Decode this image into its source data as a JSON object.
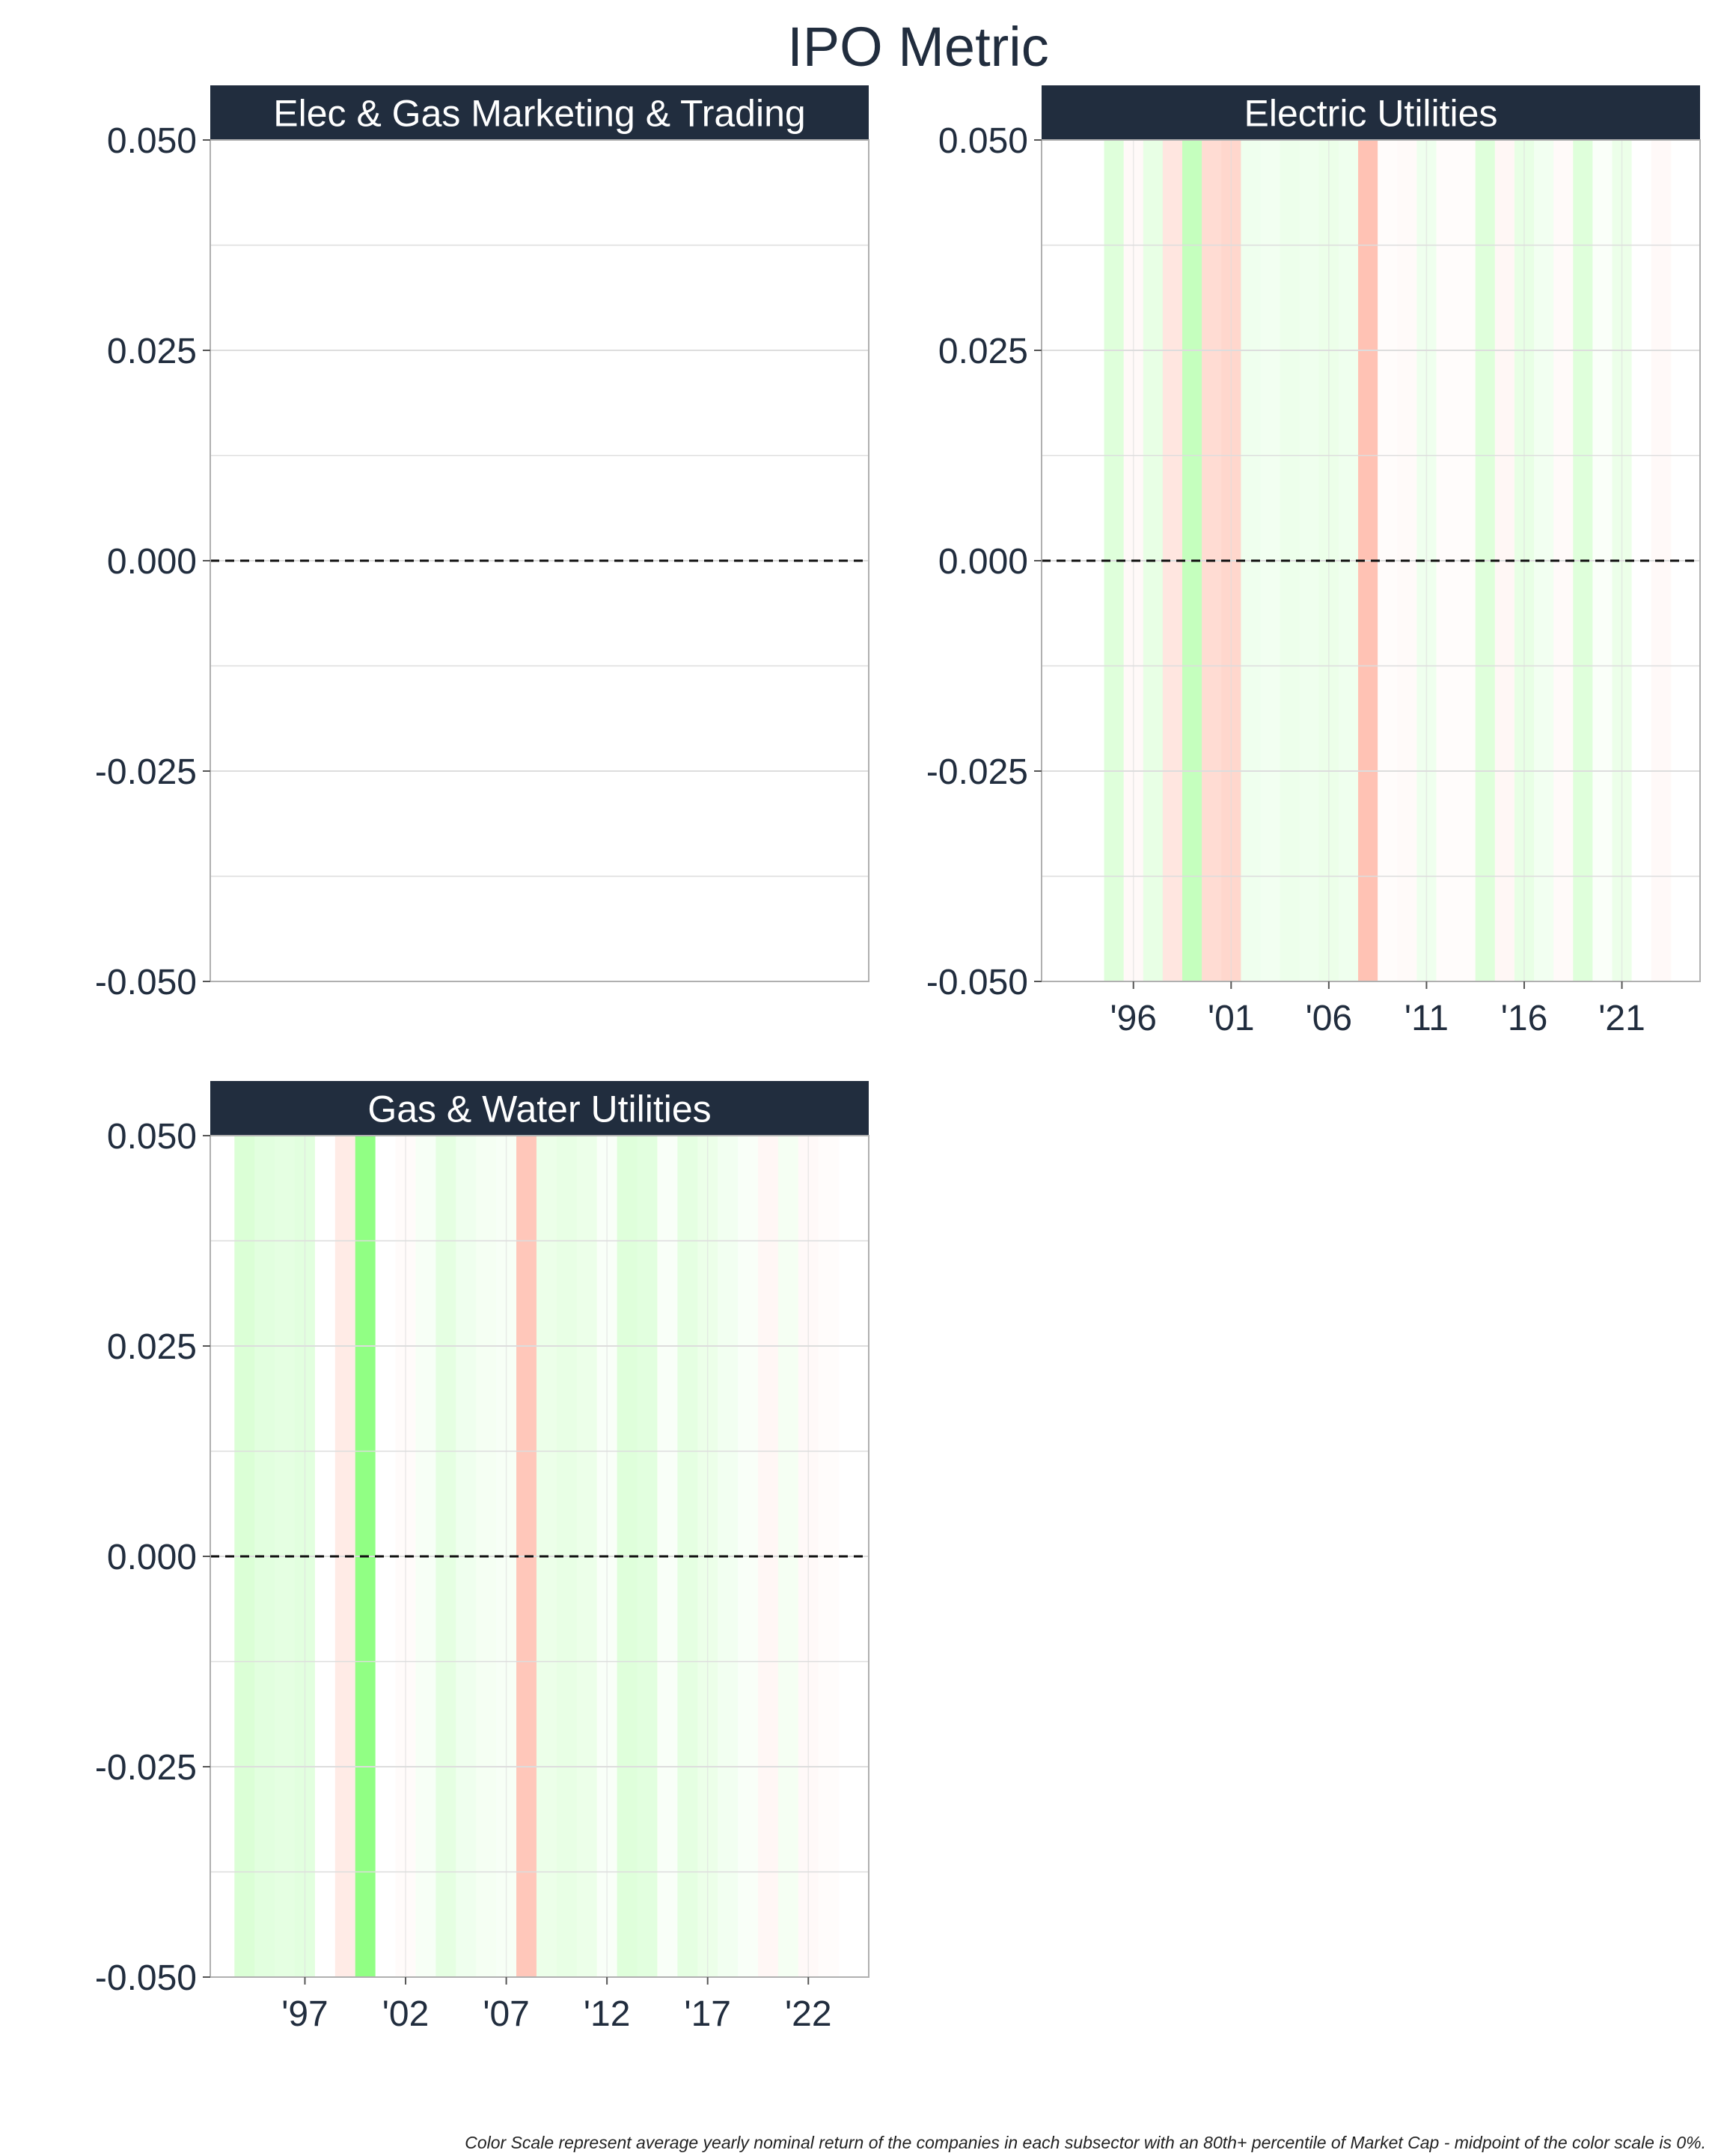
{
  "title": "IPO Metric",
  "caption": "Color Scale represent average yearly nominal return of the companies in each subsector with an 80th+ percentile of Market Cap - midpoint of the color scale is 0%.",
  "colors": {
    "header_bg": "#212d3e",
    "header_text": "#ffffff",
    "title_text": "#212d3e",
    "grid": "#dddddd",
    "zero_line": "#111111",
    "positive": "#7dff6e",
    "negative": "#ff9a82"
  },
  "chart_data": [
    {
      "type": "heatmap",
      "panel": "Elec & Gas Marketing & Trading",
      "ylim": [
        -0.05,
        0.05
      ],
      "yticks": [
        "0.050",
        "0.025",
        "0.000",
        "-0.025",
        "-0.050"
      ],
      "ytick_values": [
        0.05,
        0.025,
        0,
        -0.025,
        -0.05
      ],
      "xlim": [
        1991.3,
        2025.0
      ],
      "xticks": [],
      "xtick_values": [],
      "zero_line": 0,
      "years": [],
      "returns": []
    },
    {
      "type": "heatmap",
      "panel": "Electric Utilities",
      "ylim": [
        -0.05,
        0.05
      ],
      "yticks": [
        "0.050",
        "0.025",
        "0.000",
        "-0.025",
        "-0.050"
      ],
      "ytick_values": [
        0.05,
        0.025,
        0,
        -0.025,
        -0.05
      ],
      "xlim": [
        1991.3,
        2025.0
      ],
      "xticks": [
        "'96",
        "'01",
        "'06",
        "'11",
        "'16",
        "'21"
      ],
      "xtick_values": [
        1996,
        2001,
        2006,
        2011,
        2016,
        2021
      ],
      "zero_line": 0,
      "years": [
        1995,
        1996,
        1997,
        1998,
        1999,
        2000,
        2001,
        2002,
        2003,
        2004,
        2005,
        2006,
        2007,
        2008,
        2009,
        2010,
        2011,
        2012,
        2013,
        2014,
        2015,
        2016,
        2017,
        2018,
        2019,
        2020,
        2021,
        2022,
        2023
      ],
      "returns": [
        0.25,
        -0.06,
        0.18,
        -0.25,
        0.45,
        -0.35,
        -0.4,
        0.12,
        0.1,
        0.14,
        0.12,
        0.15,
        0.12,
        -0.6,
        -0.03,
        -0.05,
        0.12,
        -0.03,
        -0.03,
        0.25,
        -0.08,
        0.18,
        0.1,
        -0.05,
        0.25,
        0.04,
        0.15,
        0.0,
        -0.06
      ]
    },
    {
      "type": "heatmap",
      "panel": "Gas & Water Utilities",
      "ylim": [
        -0.05,
        0.05
      ],
      "yticks": [
        "0.050",
        "0.025",
        "0.000",
        "-0.025",
        "-0.050"
      ],
      "ytick_values": [
        0.05,
        0.025,
        0,
        -0.025,
        -0.05
      ],
      "xlim": [
        1992.3,
        2025.0
      ],
      "xticks": [
        "'97",
        "'02",
        "'07",
        "'12",
        "'17",
        "'22"
      ],
      "xtick_values": [
        1997,
        2002,
        2007,
        2012,
        2017,
        2022
      ],
      "zero_line": 0,
      "years": [
        1994,
        1995,
        1996,
        1997,
        1998,
        1999,
        2000,
        2001,
        2002,
        2003,
        2004,
        2005,
        2006,
        2007,
        2008,
        2009,
        2010,
        2011,
        2012,
        2013,
        2014,
        2015,
        2016,
        2017,
        2018,
        2019,
        2020,
        2021,
        2022,
        2023
      ],
      "returns": [
        0.28,
        0.22,
        0.2,
        0.22,
        0.0,
        -0.2,
        0.85,
        0.0,
        -0.04,
        0.06,
        0.2,
        0.12,
        0.08,
        0.06,
        -0.55,
        0.15,
        0.18,
        0.15,
        0.05,
        0.25,
        0.22,
        0.05,
        0.2,
        0.15,
        0.1,
        0.05,
        -0.08,
        0.08,
        -0.06,
        -0.03
      ]
    }
  ]
}
